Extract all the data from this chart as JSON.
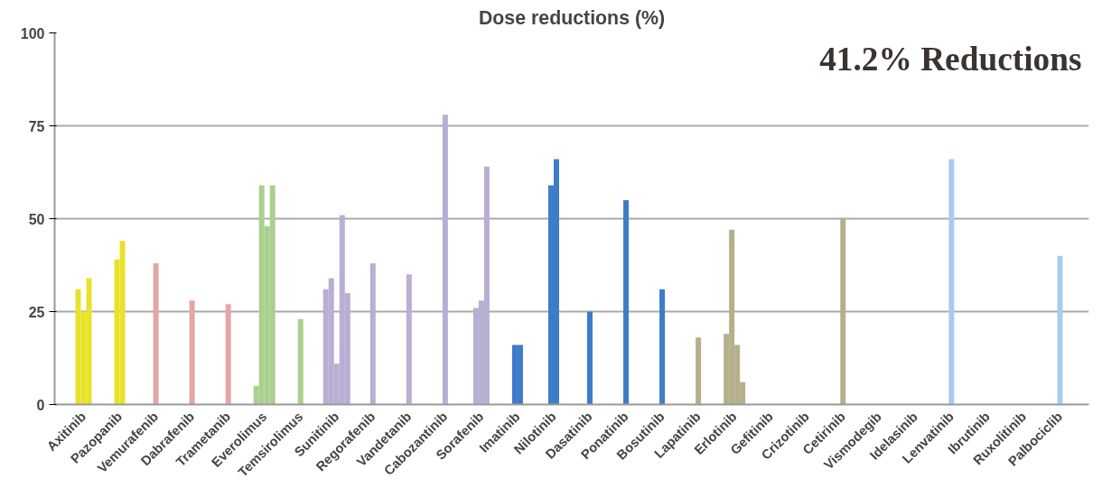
{
  "chart_data": {
    "type": "bar",
    "title": "Dose reductions (%)",
    "categories": [
      "Axitinib",
      "Pazopanib",
      "Vemurafenib",
      "Dabrafenib",
      "Trametanib",
      "Everolimus",
      "Temsirolimus",
      "Sunitinib",
      "Regorafenib",
      "Vandetanib",
      "Cabozantinib",
      "Sorafenib",
      "Imatinib",
      "Nilotinib",
      "Dasatinib",
      "Ponatinib",
      "Bosutinib",
      "Lapatinib",
      "Erlotinib",
      "Gefitinib",
      "Crizotinib",
      "Cetirinib",
      "Vismodegib",
      "Idelasinib",
      "Lenvatinib",
      "Ibrutinib",
      "Ruxolitinib",
      "Palbociclib"
    ],
    "series": [
      {
        "values": [
          31,
          39,
          38,
          28,
          27,
          5,
          23,
          31,
          38,
          35,
          78,
          26,
          16,
          59,
          25,
          55,
          31,
          18,
          19,
          null,
          null,
          50,
          null,
          null,
          66,
          null,
          null,
          40
        ],
        "colors": [
          "#e8e22a",
          "#e8e22a",
          "#e3a6a6",
          "#e3a6a6",
          "#e3a6a6",
          "#a9d08e",
          "#a9d08e",
          "#b9aed3",
          "#b9aed3",
          "#b9aed3",
          "#b9aed3",
          "#b9aed3",
          "#3d7cc9",
          "#3d7cc9",
          "#3d7cc9",
          "#3d7cc9",
          "#3d7cc9",
          "#b5b08a",
          "#b5b08a",
          "#b5b08a",
          "#b5b08a",
          "#b5b08a",
          "#b5b08a",
          "#a9cbee",
          "#a9cbee",
          "#a9cbee",
          "#a9cbee",
          "#a9cbee"
        ]
      },
      {
        "values": [
          25,
          44,
          null,
          null,
          null,
          59,
          null,
          34,
          null,
          null,
          null,
          28,
          16,
          66,
          null,
          null,
          null,
          null,
          47,
          null,
          null,
          null,
          null,
          null,
          null,
          null,
          null,
          null
        ],
        "colors": [
          "#e8e22a",
          "#e8e22a",
          "#e3a6a6",
          "#e3a6a6",
          "#e3a6a6",
          "#a9d08e",
          "#a9d08e",
          "#b9aed3",
          "#b9aed3",
          "#b9aed3",
          "#b9aed3",
          "#b9aed3",
          "#3d7cc9",
          "#3d7cc9",
          "#3d7cc9",
          "#3d7cc9",
          "#3d7cc9",
          "#b5b08a",
          "#b5b08a",
          "#b5b08a",
          "#b5b08a",
          "#b5b08a",
          "#b5b08a",
          "#a9cbee",
          "#a9cbee",
          "#a9cbee",
          "#a9cbee",
          "#a9cbee"
        ]
      },
      {
        "values": [
          34,
          null,
          null,
          null,
          null,
          48,
          null,
          11,
          null,
          null,
          null,
          64,
          null,
          null,
          null,
          null,
          null,
          null,
          16,
          null,
          null,
          null,
          null,
          null,
          null,
          null,
          null,
          null
        ],
        "colors": [
          "#e8e22a",
          "#e8e22a",
          "#e3a6a6",
          "#e3a6a6",
          "#e3a6a6",
          "#a9d08e",
          "#a9d08e",
          "#b9aed3",
          "#b9aed3",
          "#b9aed3",
          "#b9aed3",
          "#b9aed3",
          "#3d7cc9",
          "#3d7cc9",
          "#3d7cc9",
          "#3d7cc9",
          "#3d7cc9",
          "#b5b08a",
          "#b5b08a",
          "#b5b08a",
          "#b5b08a",
          "#b5b08a",
          "#b5b08a",
          "#a9cbee",
          "#a9cbee",
          "#a9cbee",
          "#a9cbee",
          "#a9cbee"
        ]
      },
      {
        "values": [
          null,
          null,
          null,
          null,
          null,
          59,
          null,
          51,
          null,
          null,
          null,
          null,
          null,
          null,
          null,
          null,
          null,
          null,
          6,
          null,
          null,
          null,
          null,
          null,
          null,
          null,
          null,
          null
        ],
        "colors": [
          "#e8e22a",
          "#e8e22a",
          "#e3a6a6",
          "#e3a6a6",
          "#e3a6a6",
          "#a9d08e",
          "#a9d08e",
          "#b9aed3",
          "#b9aed3",
          "#b9aed3",
          "#b9aed3",
          "#b9aed3",
          "#3d7cc9",
          "#3d7cc9",
          "#3d7cc9",
          "#3d7cc9",
          "#3d7cc9",
          "#b5b08a",
          "#b5b08a",
          "#b5b08a",
          "#b5b08a",
          "#b5b08a",
          "#b5b08a",
          "#a9cbee",
          "#a9cbee",
          "#a9cbee",
          "#a9cbee",
          "#a9cbee"
        ]
      },
      {
        "values": [
          null,
          null,
          null,
          null,
          null,
          null,
          null,
          30,
          null,
          null,
          null,
          null,
          null,
          null,
          null,
          null,
          null,
          null,
          null,
          null,
          null,
          null,
          null,
          null,
          null,
          null,
          null,
          null
        ],
        "color": "#b9aed3"
      }
    ],
    "ylim": [
      0,
      100
    ],
    "yticks": [
      0,
      25,
      50,
      75,
      100
    ],
    "grid": "y",
    "annotations": [
      "41.2% Reductions"
    ]
  }
}
